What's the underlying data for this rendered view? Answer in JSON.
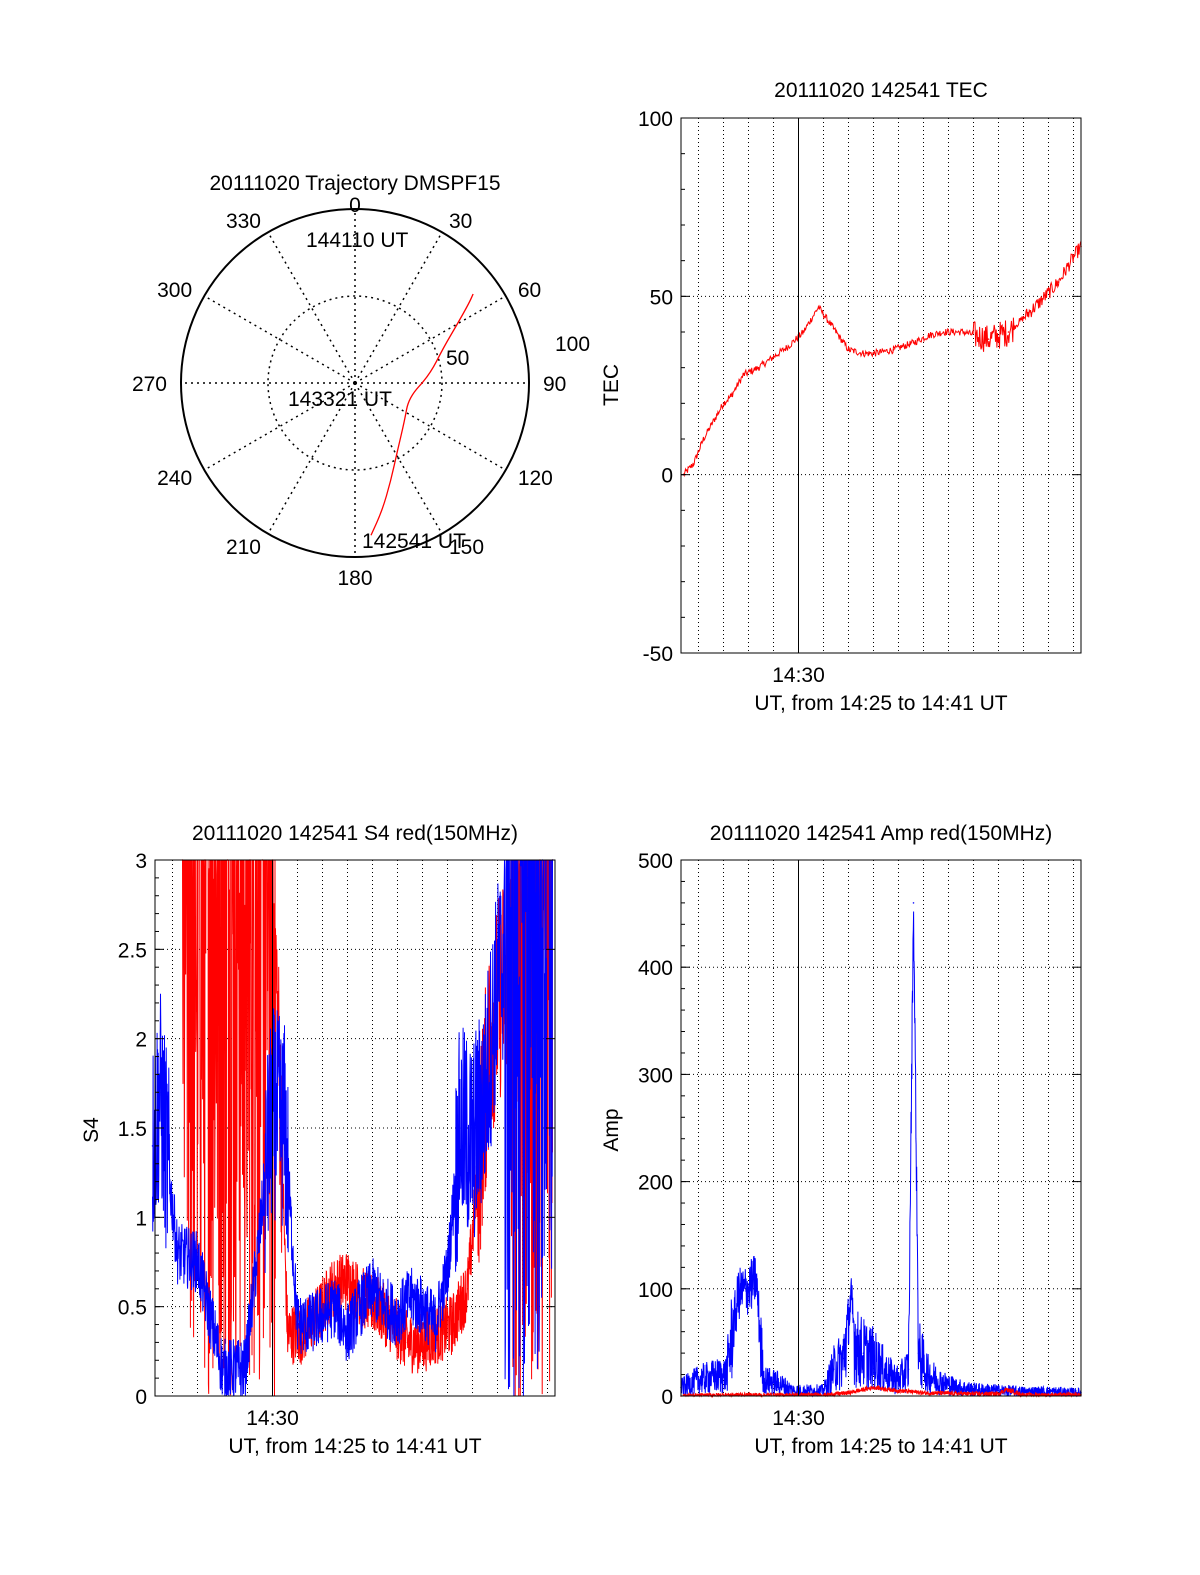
{
  "colors": {
    "red": "#ff0000",
    "blue": "#0000ff",
    "axis": "#000000"
  },
  "chart_data": [
    {
      "type": "polar",
      "title": "20111020 Trajectory DMSPF15",
      "azimuth_ticks": [
        0,
        30,
        60,
        90,
        120,
        150,
        180,
        210,
        240,
        270,
        300,
        330
      ],
      "radial_ticks": [
        50,
        100
      ],
      "radial_range": [
        0,
        100
      ],
      "grid": true,
      "series": [
        {
          "color": "red",
          "points": [
            {
              "az": 174,
              "r": 88
            },
            {
              "az": 168,
              "r": 75
            },
            {
              "az": 160,
              "r": 60
            },
            {
              "az": 148,
              "r": 46
            },
            {
              "az": 128,
              "r": 36
            },
            {
              "az": 105,
              "r": 32
            },
            {
              "az": 84,
              "r": 43
            },
            {
              "az": 68,
              "r": 55
            },
            {
              "az": 60,
              "r": 68
            },
            {
              "az": 55,
              "r": 80
            },
            {
              "az": 53,
              "r": 85
            }
          ]
        }
      ],
      "annotations": [
        "144110 UT",
        "143321 UT",
        "142541 UT"
      ]
    },
    {
      "type": "line",
      "title": "20111020 142541 TEC",
      "xlabel": "UT, from 14:25 to 14:41 UT",
      "ylabel": "TEC",
      "x_range_min": [
        25.3,
        41.3
      ],
      "x_tick_labels": [
        "14:30"
      ],
      "x_tick_values_min": [
        30
      ],
      "ylim": [
        -50,
        100
      ],
      "yticks": [
        -50,
        0,
        50,
        100
      ],
      "grid": "x-dotted",
      "series": [
        {
          "color": "red",
          "x_min": [
            25.4,
            25.8,
            26.2,
            27.0,
            27.3,
            27.8,
            28.4,
            29.0,
            29.6,
            30.2,
            30.8,
            31.4,
            32.0,
            32.6,
            33.0,
            33.8,
            34.6,
            35.2,
            35.8,
            36.6,
            37.6,
            38.4,
            39.0,
            39.6,
            40.4,
            41.0,
            41.3
          ],
          "values": [
            0,
            3,
            10,
            20,
            22,
            28,
            30,
            33,
            36,
            40,
            47,
            41,
            35,
            34,
            34,
            35,
            37,
            39,
            40,
            40,
            38,
            40,
            44,
            48,
            54,
            61,
            64
          ]
        }
      ]
    },
    {
      "type": "line",
      "title": "20111020 142541 S4 red(150MHz)",
      "xlabel": "UT, from 14:25 to 14:41 UT",
      "ylabel": "S4",
      "x_range_min": [
        25.3,
        41.3
      ],
      "x_tick_labels": [
        "14:30"
      ],
      "x_tick_values_min": [
        30
      ],
      "ylim": [
        0,
        3
      ],
      "yticks": [
        0,
        0.5,
        1,
        1.5,
        2,
        2.5,
        3
      ],
      "grid": "dotted",
      "series": [
        {
          "color": "red",
          "x_min": [
            26.4,
            27.3,
            28.2,
            29.1,
            29.6,
            30.0,
            30.6,
            31.2,
            31.8,
            32.4,
            33.0,
            33.6,
            34.2,
            34.8,
            35.4,
            36.0,
            36.6,
            37.2,
            37.8,
            38.2,
            38.7,
            39.2,
            39.7,
            40.2,
            40.7,
            41.2
          ],
          "values": [
            3.0,
            3.0,
            3.0,
            3.0,
            3.0,
            3.0,
            0.35,
            0.35,
            0.45,
            0.6,
            0.65,
            0.55,
            0.5,
            0.4,
            0.3,
            0.3,
            0.35,
            0.4,
            0.6,
            1.2,
            2.0,
            2.3,
            2.6,
            2.9,
            3.0,
            3.0
          ]
        },
        {
          "color": "blue",
          "x_min": [
            25.2,
            25.5,
            26.2,
            27.0,
            28.0,
            28.9,
            29.4,
            30.0,
            30.5,
            31.0,
            31.5,
            32.0,
            32.5,
            33.0,
            33.5,
            34.0,
            34.5,
            35.0,
            35.5,
            36.0,
            36.5,
            37.0,
            37.5,
            38.0,
            38.5,
            39.0,
            39.6,
            40.2,
            40.8,
            41.2
          ],
          "values": [
            1.4,
            1.7,
            0.8,
            0.75,
            0.15,
            0.15,
            0.8,
            1.6,
            1.5,
            0.4,
            0.4,
            0.45,
            0.5,
            0.35,
            0.5,
            0.6,
            0.5,
            0.45,
            0.55,
            0.5,
            0.4,
            0.7,
            1.5,
            1.4,
            1.7,
            2.3,
            2.7,
            2.9,
            3.0,
            3.0
          ]
        }
      ]
    },
    {
      "type": "line",
      "title": "20111020 142541 Amp red(150MHz)",
      "xlabel": "UT, from 14:25 to 14:41 UT",
      "ylabel": "Amp",
      "x_range_min": [
        25.3,
        41.3
      ],
      "x_tick_labels": [
        "14:30"
      ],
      "x_tick_values_min": [
        30
      ],
      "ylim": [
        0,
        500
      ],
      "yticks": [
        0,
        100,
        200,
        300,
        400,
        500
      ],
      "grid": "dotted",
      "series": [
        {
          "color": "blue",
          "x_min": [
            25.3,
            26.0,
            26.6,
            27.1,
            27.6,
            28.0,
            28.3,
            28.6,
            29.2,
            29.8,
            30.4,
            31.0,
            31.4,
            31.8,
            32.1,
            32.3,
            32.6,
            33.0,
            33.6,
            34.0,
            34.4,
            34.6,
            34.8,
            35.2,
            35.8,
            36.4,
            37.0,
            38.0,
            39.0,
            40.0,
            41.3
          ],
          "values": [
            8,
            15,
            18,
            20,
            95,
            100,
            110,
            15,
            12,
            5,
            5,
            5,
            25,
            35,
            90,
            45,
            40,
            35,
            20,
            15,
            25,
            460,
            40,
            20,
            12,
            8,
            6,
            5,
            4,
            4,
            3
          ]
        },
        {
          "color": "red",
          "x_min": [
            25.3,
            27.0,
            29.0,
            31.0,
            32.0,
            33.0,
            34.0,
            35.0,
            37.0,
            38.0,
            38.3,
            39.0,
            41.3
          ],
          "values": [
            0,
            1,
            1,
            1,
            3,
            8,
            5,
            3,
            2,
            2,
            6,
            1,
            1
          ]
        }
      ]
    }
  ]
}
